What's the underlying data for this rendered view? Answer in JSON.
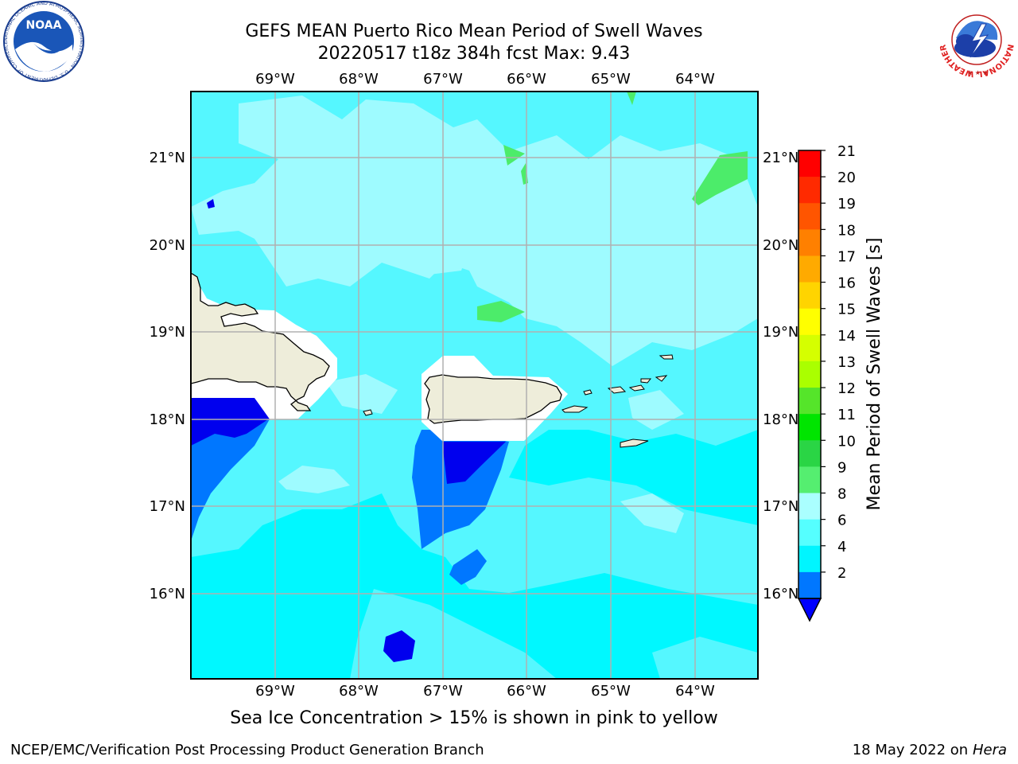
{
  "title": {
    "line1": "GEFS MEAN Puerto Rico Mean Period of Swell Waves",
    "line2": "20220517 t18z 384h fcst   Max: 9.43"
  },
  "map": {
    "lon_labels": [
      "69°W",
      "68°W",
      "67°W",
      "66°W",
      "65°W",
      "64°W"
    ],
    "lat_labels": [
      "21°N",
      "20°N",
      "19°N",
      "18°N",
      "17°N",
      "16°N"
    ],
    "lon_range": [
      -70.0,
      -63.25
    ],
    "lat_range": [
      15.0,
      21.75
    ],
    "colors": {
      "ocean_base": "#00f8ff",
      "land": "#eeedda",
      "mask": "#ffffff",
      "grid": "#b0b0b0"
    },
    "period_zones": [
      {
        "range": "6-8",
        "color": "#55f7ff"
      },
      {
        "range": "8-9",
        "color": "#9efbff"
      },
      {
        "range": "2-4",
        "color": "#0077ff"
      },
      {
        "range": "<2",
        "color": "#0000ee"
      },
      {
        "range": "9-10",
        "color": "#4cec6a"
      }
    ]
  },
  "colorbar": {
    "label": "Mean Period of Swell Waves [s]",
    "ticks": [
      "21",
      "20",
      "19",
      "18",
      "17",
      "16",
      "15",
      "14",
      "13",
      "12",
      "11",
      "10",
      "9",
      "8",
      "6",
      "4",
      "2"
    ],
    "colors": [
      "#ff0000",
      "#ff2a00",
      "#ff5500",
      "#ff8000",
      "#ffaa00",
      "#ffd400",
      "#ffff00",
      "#d5ff00",
      "#aaff00",
      "#55e52a",
      "#00e500",
      "#2ad545",
      "#55ee70",
      "#aaffff",
      "#55ffff",
      "#00f5ff",
      "#0077ff"
    ],
    "extend_color": "#0000ff"
  },
  "note": "Sea Ice Concentration > 15% is shown in pink to yellow",
  "footer": {
    "left": "NCEP/EMC/Verification Post Processing Product Generation Branch",
    "right_date": "18 May 2022 on",
    "right_host": "Hera"
  },
  "logos": {
    "left_text": "NOAA",
    "left_ring": "NATIONAL OCEANIC AND ATMOSPHERIC ADMINISTRATION · U.S. DEPARTMENT OF COMMERCE",
    "right_ring": "NATIONAL WEATHER SERVICE"
  }
}
